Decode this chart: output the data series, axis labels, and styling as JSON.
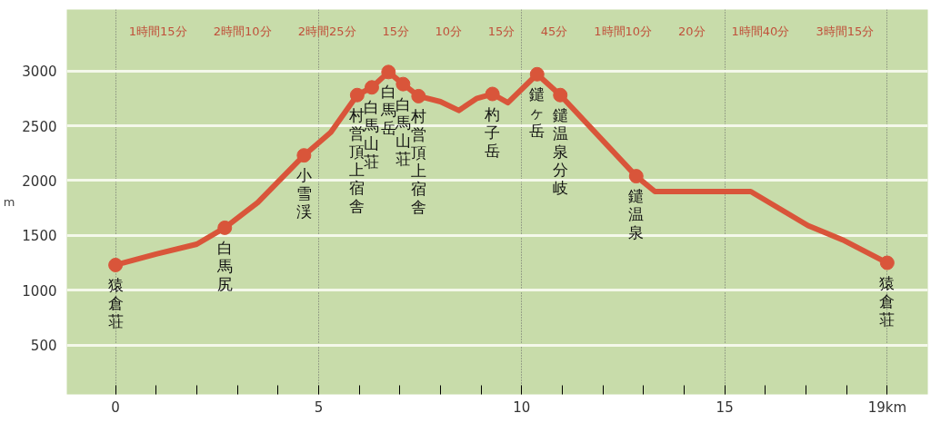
{
  "chart_data": {
    "type": "line",
    "ylabel": "m",
    "xlim": [
      -1.2,
      20.0
    ],
    "ylim": [
      50,
      3560
    ],
    "xticks": [
      0,
      {
        "value": 1,
        "label": null
      },
      {
        "value": 2,
        "label": null
      },
      {
        "value": 3,
        "label": null
      },
      {
        "value": 4,
        "label": null
      },
      5,
      {
        "value": 6,
        "label": null
      },
      {
        "value": 7,
        "label": null
      },
      {
        "value": 8,
        "label": null
      },
      {
        "value": 9,
        "label": null
      },
      10,
      {
        "value": 11,
        "label": null
      },
      {
        "value": 12,
        "label": null
      },
      {
        "value": 13,
        "label": null
      },
      {
        "value": 14,
        "label": null
      },
      15,
      {
        "value": 16,
        "label": null
      },
      {
        "value": 17,
        "label": null
      },
      {
        "value": 18,
        "label": null
      },
      {
        "value": 19,
        "label": "19km"
      }
    ],
    "yticks": [
      500,
      1000,
      1500,
      2000,
      2500,
      3000
    ],
    "grid": true,
    "series": [
      {
        "color": "#d9553a",
        "x": [
          0,
          1.0,
          2.0,
          2.69,
          3.5,
          4.64,
          5.3,
          5.95,
          6.31,
          6.72,
          7.08,
          7.46,
          8.0,
          8.45,
          8.9,
          9.28,
          9.66,
          10.38,
          10.95,
          12.82,
          13.28,
          15.64,
          17.05,
          17.9,
          19.0
        ],
        "values": [
          1230,
          1330,
          1420,
          1570,
          1800,
          2230,
          2440,
          2780,
          2850,
          2990,
          2880,
          2770,
          2720,
          2640,
          2750,
          2790,
          2710,
          2970,
          2780,
          2040,
          1900,
          1900,
          1590,
          1460,
          1250
        ]
      },
      {
        "type": "scatter",
        "marker": "circle",
        "color": "#d9553a",
        "x": [
          0,
          2.69,
          4.64,
          5.95,
          6.31,
          6.72,
          7.08,
          7.46,
          9.28,
          10.38,
          10.95,
          12.82,
          19.0
        ],
        "values": [
          1230,
          1570,
          2230,
          2780,
          2850,
          2990,
          2880,
          2770,
          2790,
          2970,
          2780,
          2040,
          1250
        ]
      }
    ],
    "annotations": [
      {
        "text": "猿倉荘",
        "x": 0,
        "y": 1230
      },
      {
        "text": "白馬尻",
        "x": 2.69,
        "y": 1570
      },
      {
        "text": "小雪渓",
        "x": 4.64,
        "y": 2230
      },
      {
        "text": "村営頂上宿舎",
        "x": 5.95,
        "y": 2780
      },
      {
        "text": "白馬山荘",
        "x": 6.31,
        "y": 2850
      },
      {
        "text": "白馬岳",
        "x": 6.72,
        "y": 2990
      },
      {
        "text": "白馬山荘",
        "x": 7.08,
        "y": 2880
      },
      {
        "text": "村営頂上宿舎",
        "x": 7.46,
        "y": 2770
      },
      {
        "text": "杓子岳",
        "x": 9.28,
        "y": 2790
      },
      {
        "text": "鑓ヶ岳",
        "x": 10.38,
        "y": 2970
      },
      {
        "text": "鑓温泉分岐",
        "x": 10.95,
        "y": 2780
      },
      {
        "text": "鑓温泉",
        "x": 12.82,
        "y": 2040
      },
      {
        "text": "猿倉荘",
        "x": 19.0,
        "y": 1250
      },
      "1時間15分",
      "2時間10分",
      "2時間25分",
      "15分",
      "10分",
      "15分",
      "45分",
      "1時間10分",
      "20分",
      "1時間40分",
      "3時間15分"
    ]
  }
}
